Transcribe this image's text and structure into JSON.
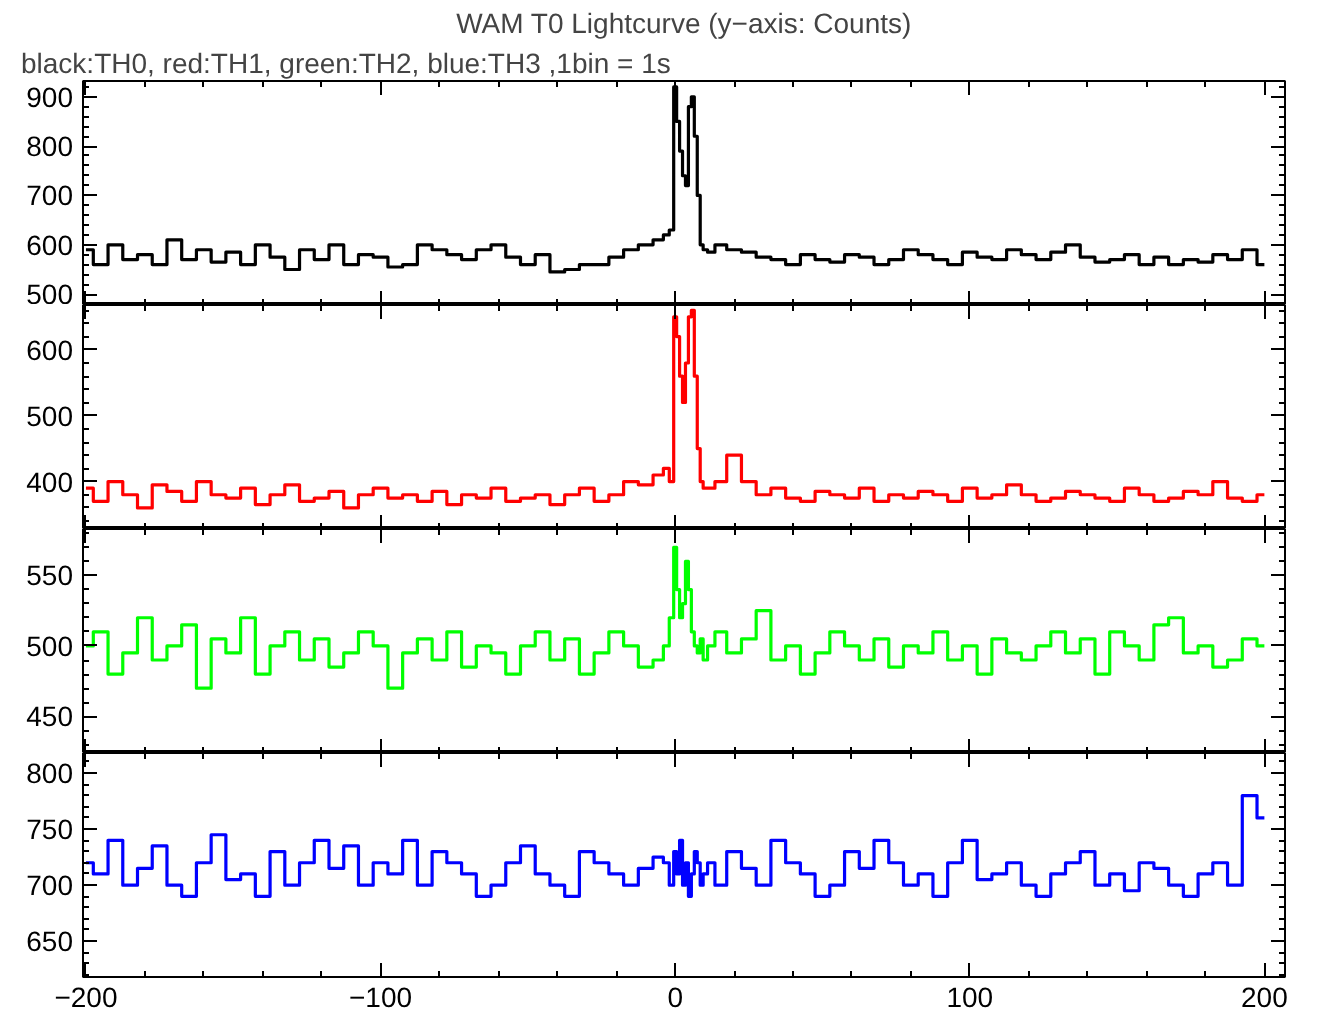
{
  "chart_data": [
    {
      "type": "step",
      "title": "WAM T0 Lightcurve (y−axis: Counts)",
      "subtitle": "black:TH0, red:TH1, green:TH2, blue:TH3 ,1bin = 1s",
      "tick_labels": "y",
      "x": [
        -200,
        -195,
        -190,
        -185,
        -180,
        -175,
        -170,
        -165,
        -160,
        -155,
        -150,
        -145,
        -140,
        -135,
        -130,
        -125,
        -120,
        -115,
        -110,
        -105,
        -100,
        -95,
        -90,
        -85,
        -80,
        -75,
        -70,
        -65,
        -60,
        -55,
        -50,
        -45,
        -40,
        -35,
        -30,
        -25,
        -20,
        -15,
        -10,
        -5,
        -3,
        -1,
        0,
        1,
        2,
        3,
        4,
        5,
        6,
        7,
        8,
        9,
        10,
        12,
        15,
        20,
        25,
        30,
        35,
        40,
        45,
        50,
        55,
        60,
        65,
        70,
        75,
        80,
        85,
        90,
        95,
        100,
        105,
        110,
        115,
        120,
        125,
        130,
        135,
        140,
        145,
        150,
        155,
        160,
        165,
        170,
        175,
        180,
        185,
        190,
        195,
        200
      ],
      "xlim": [
        -201,
        207
      ],
      "xticks": [
        -200,
        -100,
        0,
        100,
        200
      ],
      "ylim": [
        478,
        932
      ],
      "yticks": [
        500,
        600,
        700,
        800,
        900
      ],
      "series": [
        {
          "color": "#000000",
          "values": [
            590,
            560,
            600,
            570,
            580,
            560,
            610,
            570,
            590,
            565,
            585,
            560,
            600,
            575,
            550,
            590,
            570,
            600,
            560,
            580,
            575,
            555,
            560,
            600,
            590,
            580,
            570,
            590,
            600,
            575,
            560,
            580,
            545,
            550,
            560,
            560,
            575,
            590,
            600,
            610,
            620,
            630,
            920,
            850,
            790,
            740,
            720,
            880,
            900,
            820,
            700,
            600,
            590,
            585,
            600,
            590,
            585,
            575,
            570,
            560,
            580,
            570,
            565,
            580,
            575,
            560,
            570,
            590,
            580,
            570,
            560,
            585,
            575,
            570,
            590,
            580,
            570,
            585,
            600,
            575,
            565,
            570,
            580,
            560,
            575,
            560,
            570,
            565,
            580,
            570,
            590,
            560
          ]
        }
      ]
    },
    {
      "type": "step",
      "tick_labels": "y",
      "x": [
        -200,
        -195,
        -190,
        -185,
        -180,
        -175,
        -170,
        -165,
        -160,
        -155,
        -150,
        -145,
        -140,
        -135,
        -130,
        -125,
        -120,
        -115,
        -110,
        -105,
        -100,
        -95,
        -90,
        -85,
        -80,
        -75,
        -70,
        -65,
        -60,
        -55,
        -50,
        -45,
        -40,
        -35,
        -30,
        -25,
        -20,
        -15,
        -10,
        -5,
        -3,
        -1,
        0,
        1,
        2,
        3,
        4,
        5,
        6,
        7,
        8,
        9,
        10,
        12,
        15,
        20,
        25,
        30,
        35,
        40,
        45,
        50,
        55,
        60,
        65,
        70,
        75,
        80,
        85,
        90,
        95,
        100,
        105,
        110,
        115,
        120,
        125,
        130,
        135,
        140,
        145,
        150,
        155,
        160,
        165,
        170,
        175,
        180,
        185,
        190,
        195,
        200
      ],
      "xlim": [
        -201,
        207
      ],
      "xticks": [
        -200,
        -100,
        0,
        100,
        200
      ],
      "ylim": [
        328,
        668
      ],
      "yticks": [
        400,
        500,
        600
      ],
      "series": [
        {
          "color": "#ff0000",
          "values": [
            390,
            370,
            400,
            380,
            360,
            395,
            385,
            370,
            400,
            380,
            375,
            390,
            365,
            380,
            395,
            370,
            375,
            385,
            360,
            380,
            390,
            375,
            380,
            370,
            385,
            365,
            380,
            375,
            390,
            370,
            375,
            380,
            365,
            380,
            390,
            370,
            380,
            400,
            395,
            410,
            420,
            400,
            650,
            620,
            560,
            520,
            580,
            650,
            660,
            560,
            450,
            400,
            390,
            390,
            400,
            440,
            400,
            380,
            390,
            375,
            370,
            385,
            380,
            375,
            390,
            370,
            380,
            375,
            385,
            380,
            370,
            390,
            375,
            380,
            395,
            380,
            370,
            375,
            385,
            380,
            375,
            370,
            390,
            380,
            370,
            375,
            385,
            380,
            400,
            375,
            370,
            380
          ]
        }
      ]
    },
    {
      "type": "step",
      "tick_labels": "y",
      "x": [
        -200,
        -195,
        -190,
        -185,
        -180,
        -175,
        -170,
        -165,
        -160,
        -155,
        -150,
        -145,
        -140,
        -135,
        -130,
        -125,
        -120,
        -115,
        -110,
        -105,
        -100,
        -95,
        -90,
        -85,
        -80,
        -75,
        -70,
        -65,
        -60,
        -55,
        -50,
        -45,
        -40,
        -35,
        -30,
        -25,
        -20,
        -15,
        -10,
        -5,
        -3,
        -1,
        0,
        1,
        2,
        3,
        4,
        5,
        6,
        7,
        8,
        9,
        10,
        12,
        15,
        20,
        25,
        30,
        35,
        40,
        45,
        50,
        55,
        60,
        65,
        70,
        75,
        80,
        85,
        90,
        95,
        100,
        105,
        110,
        115,
        120,
        125,
        130,
        135,
        140,
        145,
        150,
        155,
        160,
        165,
        170,
        175,
        180,
        185,
        190,
        195,
        200
      ],
      "xlim": [
        -201,
        207
      ],
      "xticks": [
        -200,
        -100,
        0,
        100,
        200
      ],
      "ylim": [
        424,
        583
      ],
      "yticks": [
        450,
        500,
        550
      ],
      "series": [
        {
          "color": "#00ff00",
          "values": [
            500,
            510,
            480,
            495,
            520,
            490,
            500,
            515,
            470,
            505,
            495,
            520,
            480,
            500,
            510,
            490,
            505,
            485,
            495,
            510,
            500,
            470,
            495,
            505,
            490,
            510,
            485,
            500,
            495,
            480,
            500,
            510,
            490,
            505,
            480,
            495,
            510,
            500,
            485,
            490,
            500,
            520,
            570,
            540,
            520,
            530,
            560,
            540,
            510,
            500,
            495,
            505,
            490,
            500,
            510,
            495,
            505,
            525,
            490,
            500,
            480,
            495,
            510,
            500,
            490,
            505,
            485,
            500,
            495,
            510,
            490,
            500,
            480,
            505,
            495,
            490,
            500,
            510,
            495,
            505,
            480,
            510,
            500,
            490,
            515,
            520,
            495,
            500,
            485,
            490,
            505,
            500
          ]
        }
      ]
    },
    {
      "type": "step",
      "x": [
        -200,
        -195,
        -190,
        -185,
        -180,
        -175,
        -170,
        -165,
        -160,
        -155,
        -150,
        -145,
        -140,
        -135,
        -130,
        -125,
        -120,
        -115,
        -110,
        -105,
        -100,
        -95,
        -90,
        -85,
        -80,
        -75,
        -70,
        -65,
        -60,
        -55,
        -50,
        -45,
        -40,
        -35,
        -30,
        -25,
        -20,
        -15,
        -10,
        -5,
        -3,
        -1,
        0,
        1,
        2,
        3,
        4,
        5,
        6,
        7,
        8,
        9,
        10,
        12,
        15,
        20,
        25,
        30,
        35,
        40,
        45,
        50,
        55,
        60,
        65,
        70,
        75,
        80,
        85,
        90,
        95,
        100,
        105,
        110,
        115,
        120,
        125,
        130,
        135,
        140,
        145,
        150,
        155,
        160,
        165,
        170,
        175,
        180,
        185,
        190,
        195,
        200
      ],
      "xlim": [
        -201,
        207
      ],
      "xticks": [
        -200,
        -100,
        0,
        100,
        200
      ],
      "ylim": [
        618,
        818
      ],
      "yticks": [
        650,
        700,
        750,
        800
      ],
      "series": [
        {
          "color": "#0000ff",
          "values": [
            720,
            710,
            740,
            700,
            715,
            735,
            700,
            690,
            720,
            745,
            705,
            710,
            690,
            730,
            700,
            720,
            740,
            715,
            735,
            700,
            720,
            710,
            740,
            700,
            730,
            720,
            710,
            690,
            700,
            720,
            735,
            710,
            700,
            690,
            730,
            720,
            710,
            700,
            715,
            725,
            720,
            700,
            730,
            710,
            740,
            700,
            720,
            690,
            710,
            730,
            720,
            700,
            710,
            720,
            700,
            730,
            715,
            700,
            740,
            720,
            710,
            690,
            700,
            730,
            715,
            740,
            720,
            700,
            710,
            690,
            720,
            740,
            705,
            710,
            720,
            700,
            690,
            710,
            720,
            730,
            700,
            710,
            695,
            720,
            715,
            700,
            690,
            710,
            720,
            700,
            780,
            760
          ]
        }
      ]
    }
  ]
}
